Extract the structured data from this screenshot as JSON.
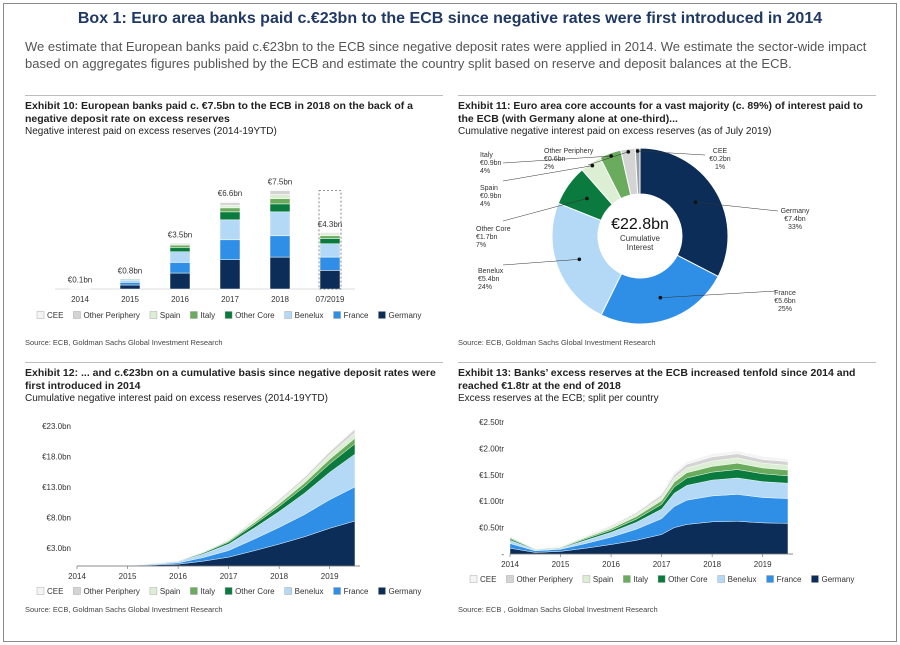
{
  "title": "Box 1: Euro area banks paid c.€23bn to the ECB since negative rates were first introduced in 2014",
  "intro": "We estimate that European banks paid c.€23bn to the ECB since negative deposit rates were applied in 2014. We estimate the sector-wide impact based on aggregates figures published by the ECB and estimate the country split based on reserve and deposit balances at the ECB.",
  "chart_data": [
    {
      "type": "bar",
      "title": "Exhibit 10: European banks paid c. €7.5bn to the ECB in 2018 on the back of a negative deposit rate on excess reserves",
      "subtitle": "Negative interest paid on excess reserves (2014-19YTD)",
      "source": "Source: ECB, Goldman Sachs Global Investment Research",
      "categories": [
        "2014",
        "2015",
        "2016",
        "2017",
        "2018",
        "07/2019"
      ],
      "series": [
        {
          "name": "Germany",
          "color": "#0b2d57",
          "values": [
            0.04,
            0.3,
            1.2,
            2.2,
            2.4,
            1.4
          ]
        },
        {
          "name": "France",
          "color": "#2f8fe6",
          "values": [
            0.03,
            0.2,
            0.8,
            1.5,
            1.6,
            1.0
          ]
        },
        {
          "name": "Benelux",
          "color": "#b3d9f7",
          "values": [
            0.02,
            0.15,
            0.8,
            1.5,
            1.8,
            1.0
          ]
        },
        {
          "name": "Other Core",
          "color": "#0b7a3e",
          "values": [
            0.005,
            0.07,
            0.3,
            0.6,
            0.6,
            0.4
          ]
        },
        {
          "name": "Italy",
          "color": "#6aab5e",
          "values": [
            0.003,
            0.04,
            0.2,
            0.3,
            0.4,
            0.2
          ]
        },
        {
          "name": "Spain",
          "color": "#dcefd4",
          "values": [
            0.001,
            0.02,
            0.1,
            0.2,
            0.3,
            0.15
          ]
        },
        {
          "name": "Other Periphery",
          "color": "#d4d4d4",
          "values": [
            0.001,
            0.01,
            0.07,
            0.2,
            0.3,
            0.1
          ]
        },
        {
          "name": "CEE",
          "color": "#f4f4f4",
          "values": [
            0,
            0.01,
            0.03,
            0.1,
            0.1,
            0.05
          ]
        }
      ],
      "totals": [
        0.1,
        0.8,
        3.5,
        6.6,
        7.5,
        4.3
      ],
      "total_labels": [
        "€0.1bn",
        "€0.8bn",
        "€3.5bn",
        "€6.6bn",
        "€7.5bn",
        "€4.3bn"
      ],
      "outline_values": [
        null,
        null,
        null,
        null,
        null,
        7.4
      ]
    },
    {
      "type": "pie",
      "title": "Exhibit 11: Euro area core accounts for a vast majority (c. 89%) of interest paid to the ECB (with Germany alone at one-third)...",
      "subtitle": "Cumulative negative interest paid on excess reserves (as of July 2019)",
      "source": "Source: ECB, Goldman Sachs Global Investment Research",
      "labels": [
        "Germany",
        "France",
        "Benelux",
        "Other Core",
        "Spain",
        "Italy",
        "Other Periphery",
        "CEE"
      ],
      "values": [
        7.4,
        5.6,
        5.4,
        1.7,
        0.9,
        0.9,
        0.6,
        0.2
      ],
      "value_labels": [
        "€7.4bn",
        "€5.6bn",
        "€5.4bn",
        "€1.7bn",
        "€0.9bn",
        "€0.9bn",
        "€0.6bn",
        "€0.2bn"
      ],
      "shares": [
        33,
        25,
        24,
        7,
        4,
        4,
        2,
        1
      ],
      "share_labels": [
        "33%",
        "25%",
        "24%",
        "7%",
        "4%",
        "4%",
        "2%",
        "1%"
      ],
      "colors": [
        "#0b2d57",
        "#2f8fe6",
        "#b3d9f7",
        "#0b7a3e",
        "#dcefd4",
        "#6aab5e",
        "#d4d4d4",
        "#9aa0a6"
      ],
      "center_label": "€22.8bn",
      "center_sublabel": "Cumulative Interest"
    },
    {
      "type": "area",
      "title": "Exhibit 12: ... and c.€23bn on a cumulative basis since negative deposit rates were first introduced in 2014",
      "subtitle": "Cumulative negative interest paid on excess reserves (2014-19YTD)",
      "source": "Source: ECB, Goldman Sachs Global Investment Research",
      "x": [
        2014.5,
        2015,
        2015.5,
        2016,
        2016.5,
        2017,
        2017.5,
        2018,
        2018.5,
        2019,
        2019.5
      ],
      "xlim": [
        2014,
        2019.6
      ],
      "xticks": [
        2014,
        2015,
        2016,
        2017,
        2018,
        2019
      ],
      "ylim": [
        0,
        24
      ],
      "yticks": [
        {
          "value": 3,
          "label": "€3.0bn"
        },
        {
          "value": 8,
          "label": "€8.0bn"
        },
        {
          "value": 13,
          "label": "€13.0bn"
        },
        {
          "value": 18,
          "label": "€18.0bn"
        },
        {
          "value": 23,
          "label": "€23.0bn"
        }
      ],
      "series": [
        {
          "name": "Germany",
          "color": "#0b2d57",
          "values": [
            0,
            0.03,
            0.17,
            0.3,
            0.8,
            1.45,
            2.5,
            3.6,
            4.8,
            6.2,
            7.4
          ]
        },
        {
          "name": "France",
          "color": "#2f8fe6",
          "values": [
            0,
            0.02,
            0.12,
            0.22,
            0.6,
            1.1,
            1.9,
            2.75,
            3.65,
            4.7,
            5.6
          ]
        },
        {
          "name": "Benelux",
          "color": "#b3d9f7",
          "values": [
            0,
            0.02,
            0.12,
            0.22,
            0.58,
            1.05,
            1.8,
            2.6,
            3.5,
            4.5,
            5.4
          ]
        },
        {
          "name": "Other Core",
          "color": "#0b7a3e",
          "values": [
            0,
            0.01,
            0.04,
            0.07,
            0.18,
            0.33,
            0.57,
            0.82,
            1.1,
            1.4,
            1.7
          ]
        },
        {
          "name": "Italy",
          "color": "#6aab5e",
          "values": [
            0,
            0.01,
            0.02,
            0.04,
            0.1,
            0.18,
            0.3,
            0.44,
            0.58,
            0.75,
            0.9
          ]
        },
        {
          "name": "Spain",
          "color": "#dcefd4",
          "values": [
            0,
            0.005,
            0.02,
            0.03,
            0.09,
            0.17,
            0.3,
            0.43,
            0.57,
            0.73,
            0.9
          ]
        },
        {
          "name": "Other Periphery",
          "color": "#d4d4d4",
          "values": [
            0,
            0.003,
            0.01,
            0.02,
            0.06,
            0.11,
            0.19,
            0.28,
            0.37,
            0.48,
            0.6
          ]
        },
        {
          "name": "CEE",
          "color": "#f4f4f4",
          "values": [
            0,
            0.001,
            0.005,
            0.01,
            0.02,
            0.04,
            0.07,
            0.1,
            0.13,
            0.17,
            0.2
          ]
        }
      ]
    },
    {
      "type": "area",
      "title": "Exhibit 13: Banks’ excess reserves at the ECB increased tenfold since 2014 and reached €1.8tr at the end of 2018",
      "subtitle": "Excess reserves at the ECB; split per country",
      "source": "Source: ECB , Goldman Sachs Global Investment Research",
      "x": [
        2014,
        2014.5,
        2015,
        2015.5,
        2016,
        2016.5,
        2017,
        2017.25,
        2017.5,
        2018,
        2018.5,
        2019,
        2019.5
      ],
      "xlim": [
        2014,
        2019.6
      ],
      "xticks": [
        2014,
        2015,
        2016,
        2017,
        2018,
        2019
      ],
      "ylim": [
        0,
        2.5
      ],
      "yticks": [
        {
          "value": 0,
          "label": "-"
        },
        {
          "value": 0.5,
          "label": "€0.50tr"
        },
        {
          "value": 1,
          "label": "€1.00tr"
        },
        {
          "value": 1.5,
          "label": "€1.50tr"
        },
        {
          "value": 2,
          "label": "€2.00tr"
        },
        {
          "value": 2.5,
          "label": "€2.50tr"
        }
      ],
      "series": [
        {
          "name": "Germany",
          "color": "#0b2d57",
          "values": [
            0.11,
            0.03,
            0.05,
            0.11,
            0.18,
            0.26,
            0.37,
            0.5,
            0.56,
            0.61,
            0.62,
            0.59,
            0.58
          ]
        },
        {
          "name": "France",
          "color": "#2f8fe6",
          "values": [
            0.09,
            0.03,
            0.04,
            0.09,
            0.14,
            0.21,
            0.3,
            0.4,
            0.46,
            0.49,
            0.51,
            0.48,
            0.47
          ]
        },
        {
          "name": "Benelux",
          "color": "#b3d9f7",
          "values": [
            0.06,
            0.02,
            0.02,
            0.06,
            0.09,
            0.13,
            0.18,
            0.25,
            0.28,
            0.3,
            0.31,
            0.3,
            0.29
          ]
        },
        {
          "name": "Other Core",
          "color": "#0b7a3e",
          "values": [
            0.03,
            0.01,
            0.01,
            0.03,
            0.04,
            0.06,
            0.09,
            0.12,
            0.14,
            0.15,
            0.16,
            0.15,
            0.14
          ]
        },
        {
          "name": "Italy",
          "color": "#6aab5e",
          "values": [
            0.02,
            0.005,
            0.01,
            0.02,
            0.03,
            0.05,
            0.07,
            0.09,
            0.1,
            0.11,
            0.12,
            0.11,
            0.11
          ]
        },
        {
          "name": "Spain",
          "color": "#dcefd4",
          "values": [
            0.02,
            0.005,
            0.01,
            0.02,
            0.03,
            0.04,
            0.06,
            0.08,
            0.09,
            0.1,
            0.1,
            0.09,
            0.09
          ]
        },
        {
          "name": "Other Periphery",
          "color": "#d4d4d4",
          "values": [
            0.01,
            0.004,
            0.01,
            0.01,
            0.02,
            0.03,
            0.05,
            0.06,
            0.07,
            0.08,
            0.08,
            0.07,
            0.07
          ]
        },
        {
          "name": "CEE",
          "color": "#f4f4f4",
          "values": [
            0.01,
            0.003,
            0.005,
            0.01,
            0.02,
            0.02,
            0.03,
            0.05,
            0.05,
            0.06,
            0.05,
            0.06,
            0.05
          ]
        }
      ]
    }
  ]
}
